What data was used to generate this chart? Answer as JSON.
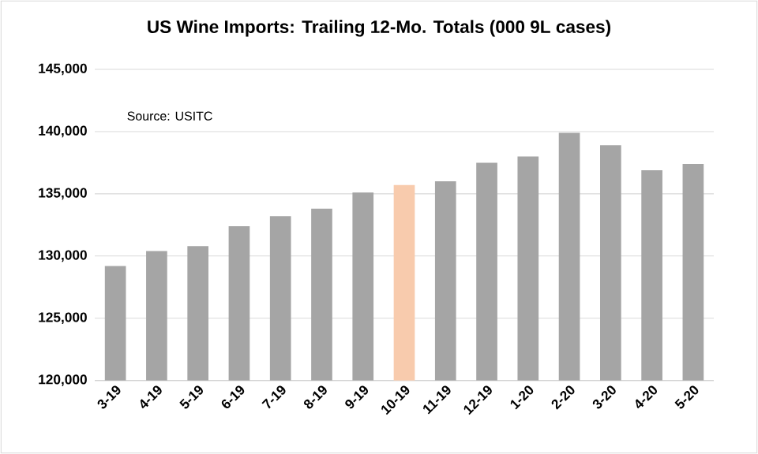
{
  "chart_data": {
    "type": "bar",
    "title": "US Wine Imports: Trailing 12-Mo. Totals (000 9L cases)",
    "annotations": [
      "Source: USITC"
    ],
    "categories": [
      "3-19",
      "4-19",
      "5-19",
      "6-19",
      "7-19",
      "8-19",
      "9-19",
      "10-19",
      "11-19",
      "12-19",
      "1-20",
      "2-20",
      "3-20",
      "4-20",
      "5-20"
    ],
    "values": [
      129200,
      130400,
      130800,
      132400,
      133200,
      133800,
      135100,
      135700,
      136000,
      137500,
      138000,
      139900,
      138900,
      136900,
      137400
    ],
    "colors": [
      "#a5a5a5",
      "#a5a5a5",
      "#a5a5a5",
      "#a5a5a5",
      "#a5a5a5",
      "#a5a5a5",
      "#a5a5a5",
      "#f8cbad",
      "#a5a5a5",
      "#a5a5a5",
      "#a5a5a5",
      "#a5a5a5",
      "#a5a5a5",
      "#a5a5a5",
      "#a5a5a5"
    ],
    "ylim": [
      120000,
      145000
    ],
    "yticks": [
      {
        "value": 120000,
        "label": "120,000"
      },
      {
        "value": 125000,
        "label": "125,000"
      },
      {
        "value": 130000,
        "label": "130,000"
      },
      {
        "value": 135000,
        "label": "135,000"
      },
      {
        "value": 140000,
        "label": "140,000"
      },
      {
        "value": 145000,
        "label": "145,000"
      }
    ],
    "grid": "y"
  }
}
